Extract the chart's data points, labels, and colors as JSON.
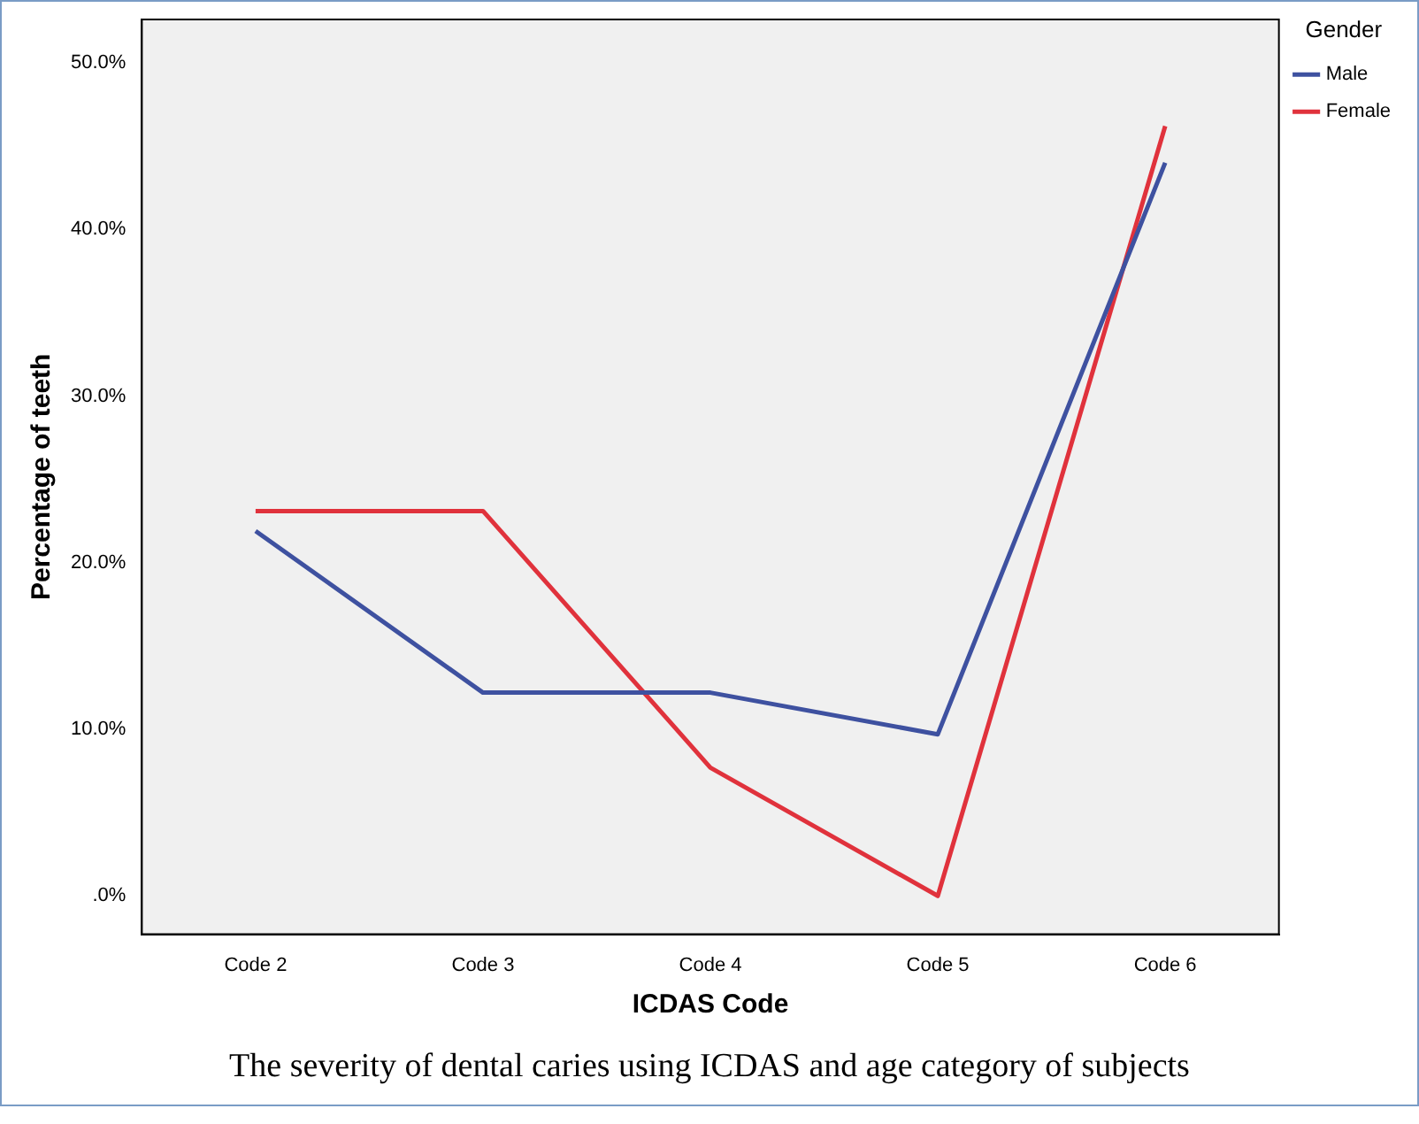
{
  "chart_data": {
    "type": "line",
    "xlabel": "ICDAS Code",
    "ylabel": "Percentage of teeth",
    "legend_title": "Gender",
    "legend": "top right",
    "grid": false,
    "marker": "none",
    "line_style": "solid",
    "categories": [
      "Code 2",
      "Code 3",
      "Code 4",
      "Code 5",
      "Code 6"
    ],
    "ylim": [
      -2.3,
      52.6
    ],
    "yticks": [
      {
        "value": 0,
        "label": ".0%"
      },
      {
        "value": 10,
        "label": "10.0%"
      },
      {
        "value": 20,
        "label": "20.0%"
      },
      {
        "value": 30,
        "label": "30.0%"
      },
      {
        "value": 40,
        "label": "40.0%"
      },
      {
        "value": 50,
        "label": "50.0%"
      }
    ],
    "series": [
      {
        "name": "Male",
        "color": "#3e51a0",
        "values": [
          21.9,
          12.2,
          12.2,
          9.7,
          44.0
        ]
      },
      {
        "name": "Female",
        "color": "#e0323c",
        "values": [
          23.1,
          23.1,
          7.7,
          0,
          46.2
        ]
      }
    ],
    "annotations": [
      "The severity of dental caries using ICDAS  and age category of subjects"
    ]
  }
}
